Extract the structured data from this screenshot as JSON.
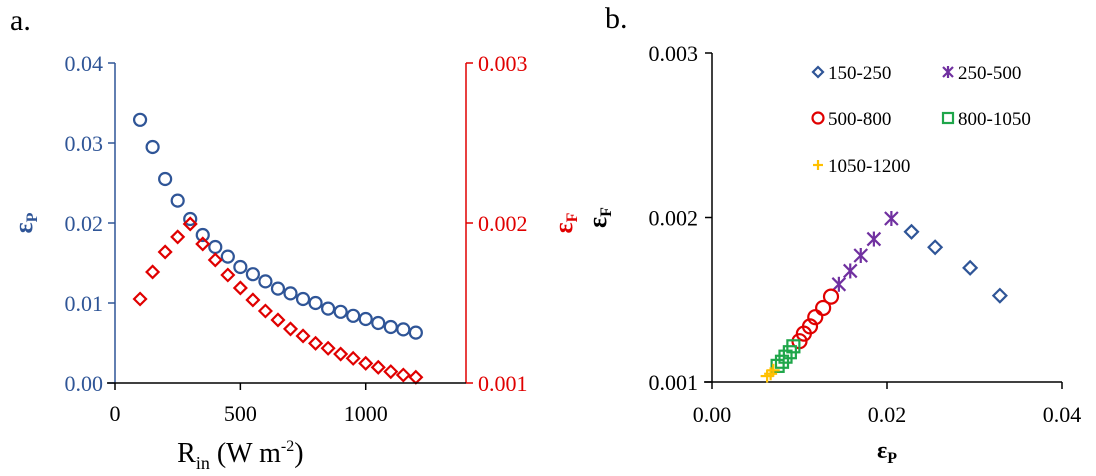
{
  "figure": {
    "panel_a_label": "a.",
    "panel_b_label": "b."
  },
  "colors": {
    "blue": "#2f5597",
    "red": "#e00000",
    "purple": "#7030a0",
    "green": "#1fa64a",
    "orange": "#ffc000",
    "black": "#000000"
  },
  "chart_data": [
    {
      "panel": "a",
      "type": "scatter",
      "title": "",
      "xlabel": "R_in (W m^-2)",
      "xlabel_parts": {
        "main": "R",
        "sub": "in",
        "rest": " (W m",
        "sup": "-2",
        "close": ")"
      },
      "ylabel_left": "εP",
      "ylabel_right": "εF",
      "xlim": [
        0,
        1400
      ],
      "xticks": [
        0,
        500,
        1000
      ],
      "xtick_labels": [
        "0",
        "500",
        "1000"
      ],
      "ylim_left": [
        0,
        0.04
      ],
      "yticks_left": [
        0,
        0.01,
        0.02,
        0.03,
        0.04
      ],
      "ytick_labels_left": [
        "0.00",
        "0.01",
        "0.02",
        "0.03",
        "0.04"
      ],
      "ylim_right": [
        0.001,
        0.003
      ],
      "yticks_right": [
        0.001,
        0.002,
        0.003
      ],
      "ytick_labels_right": [
        "0.001",
        "0.002",
        "0.003"
      ],
      "grid": false,
      "x": [
        100,
        150,
        200,
        250,
        300,
        350,
        400,
        450,
        500,
        550,
        600,
        650,
        700,
        750,
        800,
        850,
        900,
        950,
        1000,
        1050,
        1100,
        1150,
        1200
      ],
      "series": [
        {
          "name": "εP",
          "axis": "left",
          "marker": "circle",
          "color": "#2f5597",
          "values": [
            0.0329,
            0.0295,
            0.0255,
            0.0228,
            0.0205,
            0.0185,
            0.017,
            0.0158,
            0.0145,
            0.0136,
            0.0127,
            0.0118,
            0.0112,
            0.0105,
            0.01,
            0.0093,
            0.0089,
            0.0084,
            0.008,
            0.0075,
            0.007,
            0.0067,
            0.0063
          ]
        },
        {
          "name": "εF",
          "axis": "right",
          "marker": "diamond",
          "color": "#e00000",
          "values": [
            0.001525,
            0.001694,
            0.001819,
            0.001913,
            0.001994,
            0.001869,
            0.001769,
            0.001675,
            0.001594,
            0.001519,
            0.00145,
            0.001394,
            0.001338,
            0.001294,
            0.001248,
            0.001217,
            0.001181,
            0.001154,
            0.001123,
            0.001098,
            0.001071,
            0.00105,
            0.001036
          ]
        }
      ]
    },
    {
      "panel": "b",
      "type": "scatter",
      "title": "",
      "xlabel": "εP",
      "ylabel": "εF",
      "ylabel_extra_red": "εF",
      "xlim": [
        0,
        0.04
      ],
      "xticks": [
        0,
        0.02,
        0.04
      ],
      "xtick_labels": [
        "0.00",
        "0.02",
        "0.04"
      ],
      "ylim": [
        0.001,
        0.003
      ],
      "yticks": [
        0.001,
        0.002,
        0.003
      ],
      "ytick_labels": [
        "0.001",
        "0.002",
        "0.003"
      ],
      "grid": false,
      "legend_position": "upper right, inside",
      "series": [
        {
          "name": "150-250",
          "marker": "diamond",
          "color": "#2f5597",
          "x": [
            0.0228,
            0.0255,
            0.0295,
            0.0329
          ],
          "y": [
            0.001913,
            0.001819,
            0.001694,
            0.001525
          ]
        },
        {
          "name": "250-500",
          "marker": "asterisk",
          "color": "#7030a0",
          "x": [
            0.0205,
            0.0185,
            0.017,
            0.0158,
            0.0145
          ],
          "y": [
            0.001994,
            0.001869,
            0.001769,
            0.001675,
            0.001594
          ]
        },
        {
          "name": "500-800",
          "marker": "circle",
          "color": "#e00000",
          "x": [
            0.0136,
            0.0127,
            0.0118,
            0.0112,
            0.0105,
            0.01
          ],
          "y": [
            0.001519,
            0.00145,
            0.001394,
            0.001338,
            0.001294,
            0.001248
          ]
        },
        {
          "name": "800-1050",
          "marker": "square",
          "color": "#1fa64a",
          "x": [
            0.0093,
            0.0089,
            0.0084,
            0.008,
            0.0075
          ],
          "y": [
            0.001217,
            0.001181,
            0.001154,
            0.001123,
            0.001098
          ]
        },
        {
          "name": "1050-1200",
          "marker": "plus",
          "color": "#ffc000",
          "x": [
            0.007,
            0.0067,
            0.0063
          ],
          "y": [
            0.001071,
            0.00105,
            0.001036
          ]
        }
      ]
    }
  ]
}
